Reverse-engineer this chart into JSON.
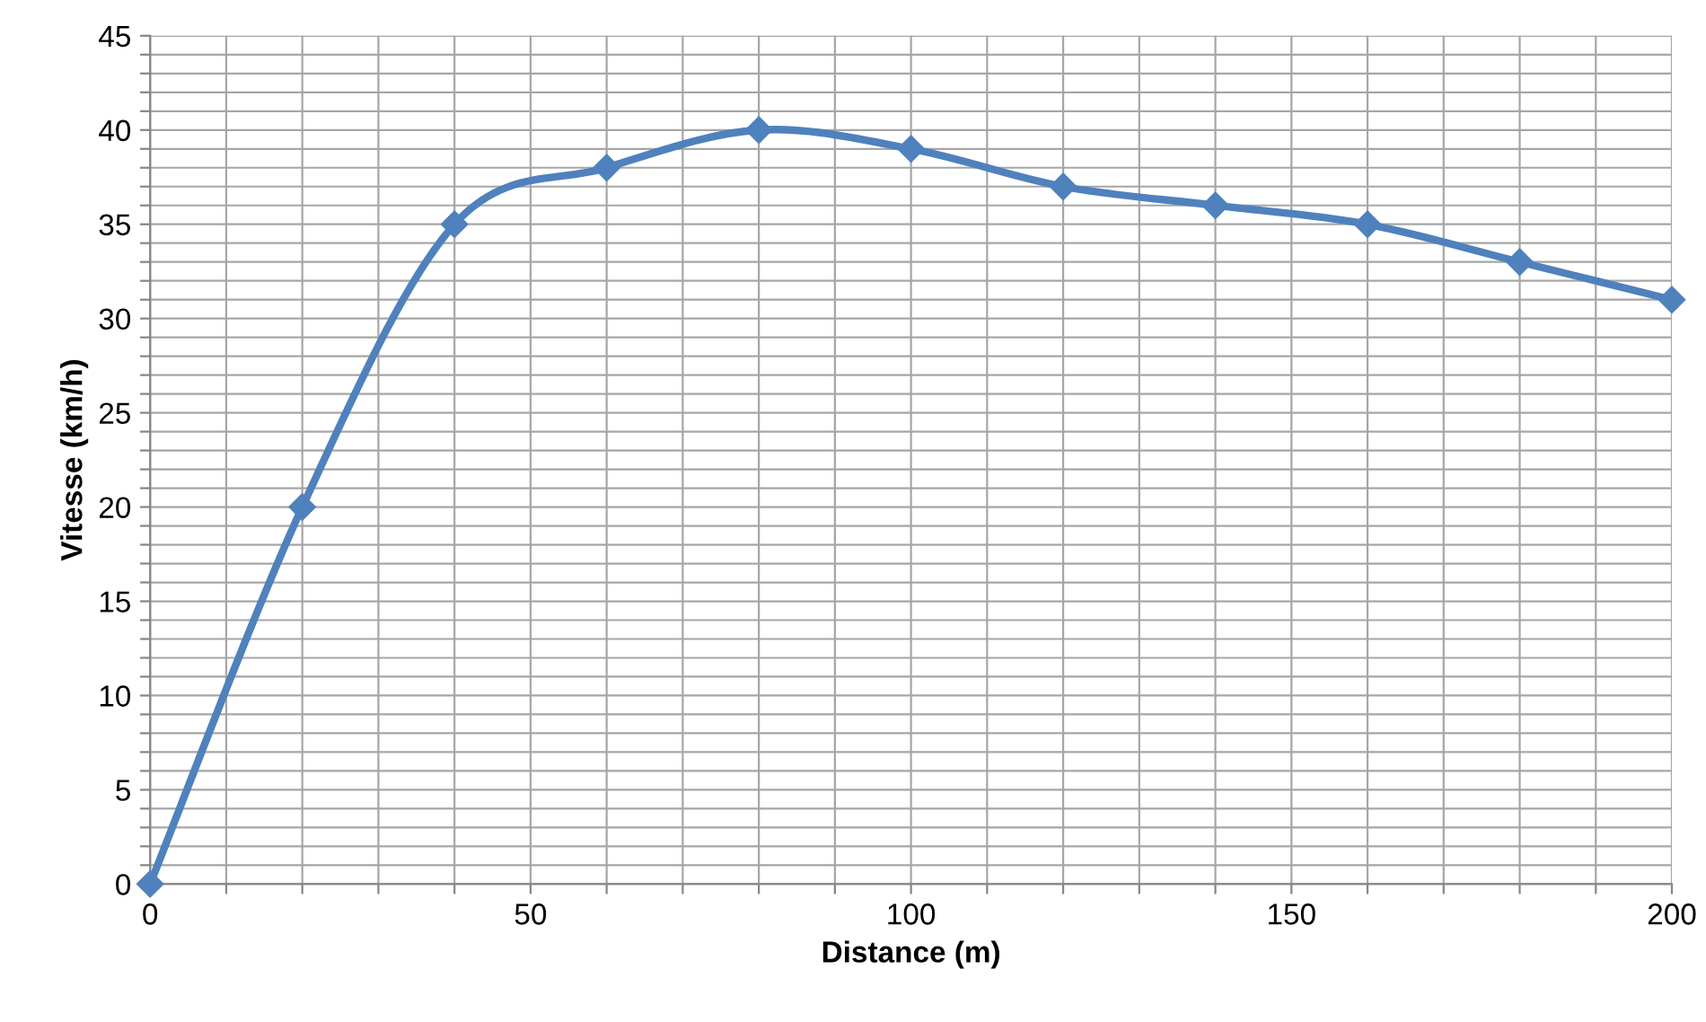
{
  "chart_data": {
    "type": "line",
    "xlabel": "Distance (m)",
    "ylabel": "Vitesse (km/h)",
    "x": [
      0,
      20,
      40,
      60,
      80,
      100,
      120,
      140,
      160,
      180,
      200
    ],
    "series": [
      {
        "color": "#4f81bd",
        "values": [
          0,
          20,
          35,
          38,
          40,
          39,
          37,
          36,
          35,
          33,
          31
        ]
      }
    ],
    "xlim": [
      0,
      200
    ],
    "ylim": [
      0,
      45
    ],
    "xticks": [
      0,
      {
        "value": 10,
        "label": null
      },
      {
        "value": 20,
        "label": null
      },
      {
        "value": 30,
        "label": null
      },
      {
        "value": 40,
        "label": null
      },
      50,
      {
        "value": 60,
        "label": null
      },
      {
        "value": 70,
        "label": null
      },
      {
        "value": 80,
        "label": null
      },
      {
        "value": 90,
        "label": null
      },
      100,
      {
        "value": 110,
        "label": null
      },
      {
        "value": 120,
        "label": null
      },
      {
        "value": 130,
        "label": null
      },
      {
        "value": 140,
        "label": null
      },
      150,
      {
        "value": 160,
        "label": null
      },
      {
        "value": 170,
        "label": null
      },
      {
        "value": 180,
        "label": null
      },
      {
        "value": 190,
        "label": null
      },
      200
    ],
    "yticks": [
      0,
      {
        "value": 1,
        "label": null
      },
      {
        "value": 2,
        "label": null
      },
      {
        "value": 3,
        "label": null
      },
      {
        "value": 4,
        "label": null
      },
      5,
      {
        "value": 6,
        "label": null
      },
      {
        "value": 7,
        "label": null
      },
      {
        "value": 8,
        "label": null
      },
      {
        "value": 9,
        "label": null
      },
      10,
      {
        "value": 11,
        "label": null
      },
      {
        "value": 12,
        "label": null
      },
      {
        "value": 13,
        "label": null
      },
      {
        "value": 14,
        "label": null
      },
      15,
      {
        "value": 16,
        "label": null
      },
      {
        "value": 17,
        "label": null
      },
      {
        "value": 18,
        "label": null
      },
      {
        "value": 19,
        "label": null
      },
      20,
      {
        "value": 21,
        "label": null
      },
      {
        "value": 22,
        "label": null
      },
      {
        "value": 23,
        "label": null
      },
      {
        "value": 24,
        "label": null
      },
      25,
      {
        "value": 26,
        "label": null
      },
      {
        "value": 27,
        "label": null
      },
      {
        "value": 28,
        "label": null
      },
      {
        "value": 29,
        "label": null
      },
      30,
      {
        "value": 31,
        "label": null
      },
      {
        "value": 32,
        "label": null
      },
      {
        "value": 33,
        "label": null
      },
      {
        "value": 34,
        "label": null
      },
      35,
      {
        "value": 36,
        "label": null
      },
      {
        "value": 37,
        "label": null
      },
      {
        "value": 38,
        "label": null
      },
      {
        "value": 39,
        "label": null
      },
      40,
      {
        "value": 41,
        "label": null
      },
      {
        "value": 42,
        "label": null
      },
      {
        "value": 43,
        "label": null
      },
      {
        "value": 44,
        "label": null
      },
      45
    ],
    "grid": true,
    "marker": "diamond",
    "line_style": "solid",
    "legend": false
  }
}
